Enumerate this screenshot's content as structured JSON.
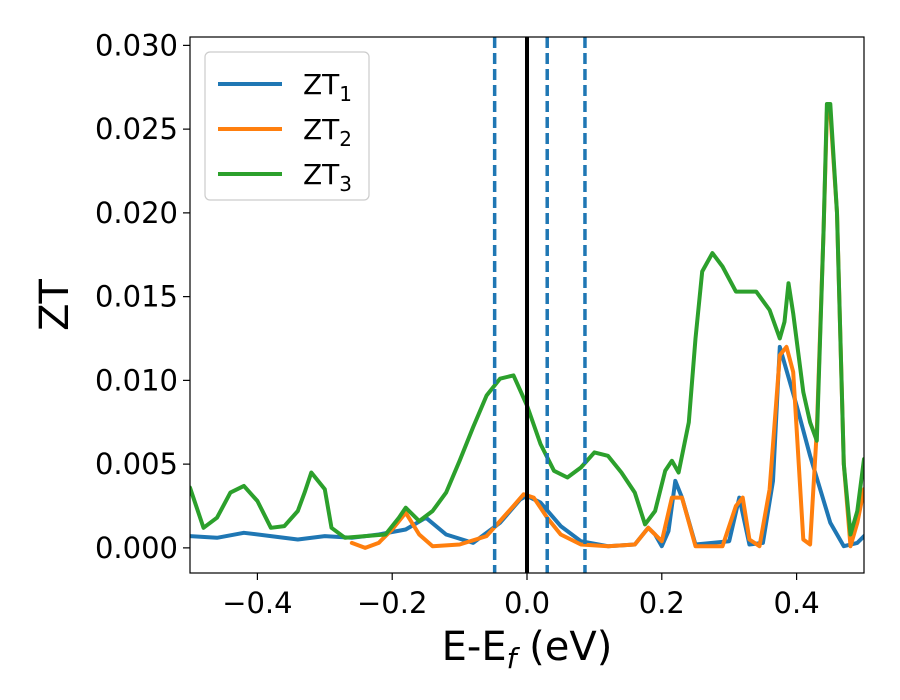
{
  "chart_data": {
    "type": "line",
    "xlabel": "E-E",
    "xlabel_sub": "f",
    "xlabel_unit": " (eV)",
    "ylabel": "ZT",
    "xlim": [
      -0.5,
      0.5
    ],
    "ylim": [
      -0.0015,
      0.0305
    ],
    "x_ticks": [
      -0.4,
      -0.2,
      0.0,
      0.2,
      0.4
    ],
    "x_tick_labels": [
      "−0.4",
      "−0.2",
      "0.0",
      "0.2",
      "0.4"
    ],
    "y_ticks": [
      0.0,
      0.005,
      0.01,
      0.015,
      0.02,
      0.025,
      0.03
    ],
    "y_tick_labels": [
      "0.000",
      "0.005",
      "0.010",
      "0.015",
      "0.020",
      "0.025",
      "0.030"
    ],
    "grid": false,
    "legend_position": "upper-left",
    "vlines": [
      {
        "x": 0.0,
        "style": "solid",
        "color": "#000000"
      },
      {
        "x": -0.048,
        "style": "dashed",
        "color": "#1f77b4"
      },
      {
        "x": 0.03,
        "style": "dashed",
        "color": "#1f77b4"
      },
      {
        "x": 0.086,
        "style": "dashed",
        "color": "#1f77b4"
      }
    ],
    "series": [
      {
        "name": "ZT",
        "name_sub": "1",
        "color": "#1f77b4",
        "points": [
          [
            -0.5,
            0.0007
          ],
          [
            -0.46,
            0.0006
          ],
          [
            -0.42,
            0.0009
          ],
          [
            -0.38,
            0.0007
          ],
          [
            -0.34,
            0.0005
          ],
          [
            -0.3,
            0.0007
          ],
          [
            -0.26,
            0.0006
          ],
          [
            -0.22,
            0.0008
          ],
          [
            -0.18,
            0.0011
          ],
          [
            -0.15,
            0.0018
          ],
          [
            -0.12,
            0.0008
          ],
          [
            -0.08,
            0.0003
          ],
          [
            -0.04,
            0.0015
          ],
          [
            -0.01,
            0.0029
          ],
          [
            0.0,
            0.0031
          ],
          [
            0.02,
            0.0027
          ],
          [
            0.05,
            0.0013
          ],
          [
            0.08,
            0.0004
          ],
          [
            0.12,
            0.0001
          ],
          [
            0.16,
            0.0002
          ],
          [
            0.18,
            0.0012
          ],
          [
            0.19,
            0.0008
          ],
          [
            0.2,
            0.0001
          ],
          [
            0.21,
            0.001
          ],
          [
            0.22,
            0.004
          ],
          [
            0.23,
            0.003
          ],
          [
            0.25,
            0.0002
          ],
          [
            0.3,
            0.0004
          ],
          [
            0.315,
            0.003
          ],
          [
            0.33,
            0.0002
          ],
          [
            0.35,
            0.0003
          ],
          [
            0.365,
            0.004
          ],
          [
            0.375,
            0.012
          ],
          [
            0.4,
            0.0085
          ],
          [
            0.42,
            0.0055
          ],
          [
            0.45,
            0.0015
          ],
          [
            0.47,
            0.0001
          ],
          [
            0.49,
            0.0003
          ],
          [
            0.5,
            0.0007
          ]
        ]
      },
      {
        "name": "ZT",
        "name_sub": "2",
        "color": "#ff7f0e",
        "points": [
          [
            -0.26,
            0.0003
          ],
          [
            -0.24,
            0.0
          ],
          [
            -0.22,
            0.0003
          ],
          [
            -0.2,
            0.0011
          ],
          [
            -0.18,
            0.0021
          ],
          [
            -0.16,
            0.0008
          ],
          [
            -0.14,
            0.0001
          ],
          [
            -0.1,
            0.0002
          ],
          [
            -0.06,
            0.0007
          ],
          [
            -0.02,
            0.0025
          ],
          [
            -0.005,
            0.0032
          ],
          [
            0.01,
            0.003
          ],
          [
            0.03,
            0.0018
          ],
          [
            0.05,
            0.0008
          ],
          [
            0.08,
            0.0002
          ],
          [
            0.12,
            0.0001
          ],
          [
            0.16,
            0.0002
          ],
          [
            0.18,
            0.0012
          ],
          [
            0.2,
            0.0004
          ],
          [
            0.215,
            0.003
          ],
          [
            0.23,
            0.003
          ],
          [
            0.25,
            0.0001
          ],
          [
            0.29,
            0.0001
          ],
          [
            0.31,
            0.0025
          ],
          [
            0.32,
            0.003
          ],
          [
            0.33,
            0.0005
          ],
          [
            0.345,
            0.0001
          ],
          [
            0.36,
            0.0035
          ],
          [
            0.375,
            0.0115
          ],
          [
            0.385,
            0.012
          ],
          [
            0.395,
            0.0105
          ],
          [
            0.41,
            0.0005
          ],
          [
            0.42,
            0.0002
          ],
          [
            0.43,
            0.007
          ],
          [
            0.44,
            0.019
          ],
          [
            0.445,
            0.026
          ],
          [
            0.45,
            0.026
          ],
          [
            0.46,
            0.02
          ],
          [
            0.47,
            0.005
          ],
          [
            0.48,
            0.0001
          ],
          [
            0.49,
            0.0015
          ],
          [
            0.5,
            0.0035
          ]
        ]
      },
      {
        "name": "ZT",
        "name_sub": "3",
        "color": "#2ca02c",
        "points": [
          [
            -0.5,
            0.0036
          ],
          [
            -0.48,
            0.0012
          ],
          [
            -0.46,
            0.0018
          ],
          [
            -0.44,
            0.0033
          ],
          [
            -0.42,
            0.0037
          ],
          [
            -0.4,
            0.0028
          ],
          [
            -0.38,
            0.0012
          ],
          [
            -0.36,
            0.0013
          ],
          [
            -0.34,
            0.0022
          ],
          [
            -0.33,
            0.0033
          ],
          [
            -0.32,
            0.0045
          ],
          [
            -0.3,
            0.0035
          ],
          [
            -0.29,
            0.0012
          ],
          [
            -0.27,
            0.0006
          ],
          [
            -0.24,
            0.0007
          ],
          [
            -0.21,
            0.0008
          ],
          [
            -0.19,
            0.0018
          ],
          [
            -0.18,
            0.0024
          ],
          [
            -0.16,
            0.0016
          ],
          [
            -0.14,
            0.0022
          ],
          [
            -0.12,
            0.0033
          ],
          [
            -0.1,
            0.0052
          ],
          [
            -0.08,
            0.0072
          ],
          [
            -0.06,
            0.0091
          ],
          [
            -0.04,
            0.0101
          ],
          [
            -0.02,
            0.0103
          ],
          [
            0.0,
            0.0085
          ],
          [
            0.02,
            0.0062
          ],
          [
            0.04,
            0.0046
          ],
          [
            0.06,
            0.0042
          ],
          [
            0.08,
            0.0048
          ],
          [
            0.1,
            0.0057
          ],
          [
            0.12,
            0.0055
          ],
          [
            0.14,
            0.0045
          ],
          [
            0.16,
            0.0033
          ],
          [
            0.175,
            0.0014
          ],
          [
            0.19,
            0.0022
          ],
          [
            0.205,
            0.0046
          ],
          [
            0.215,
            0.0052
          ],
          [
            0.225,
            0.0045
          ],
          [
            0.24,
            0.0075
          ],
          [
            0.25,
            0.0125
          ],
          [
            0.26,
            0.0165
          ],
          [
            0.275,
            0.0176
          ],
          [
            0.29,
            0.0168
          ],
          [
            0.31,
            0.0153
          ],
          [
            0.34,
            0.0153
          ],
          [
            0.36,
            0.0142
          ],
          [
            0.375,
            0.0125
          ],
          [
            0.382,
            0.0135
          ],
          [
            0.388,
            0.0158
          ],
          [
            0.395,
            0.014
          ],
          [
            0.41,
            0.0093
          ],
          [
            0.42,
            0.0075
          ],
          [
            0.43,
            0.0064
          ],
          [
            0.44,
            0.019
          ],
          [
            0.445,
            0.0265
          ],
          [
            0.45,
            0.0265
          ],
          [
            0.46,
            0.02
          ],
          [
            0.47,
            0.005
          ],
          [
            0.48,
            0.0008
          ],
          [
            0.49,
            0.0022
          ],
          [
            0.5,
            0.0053
          ]
        ]
      }
    ]
  }
}
